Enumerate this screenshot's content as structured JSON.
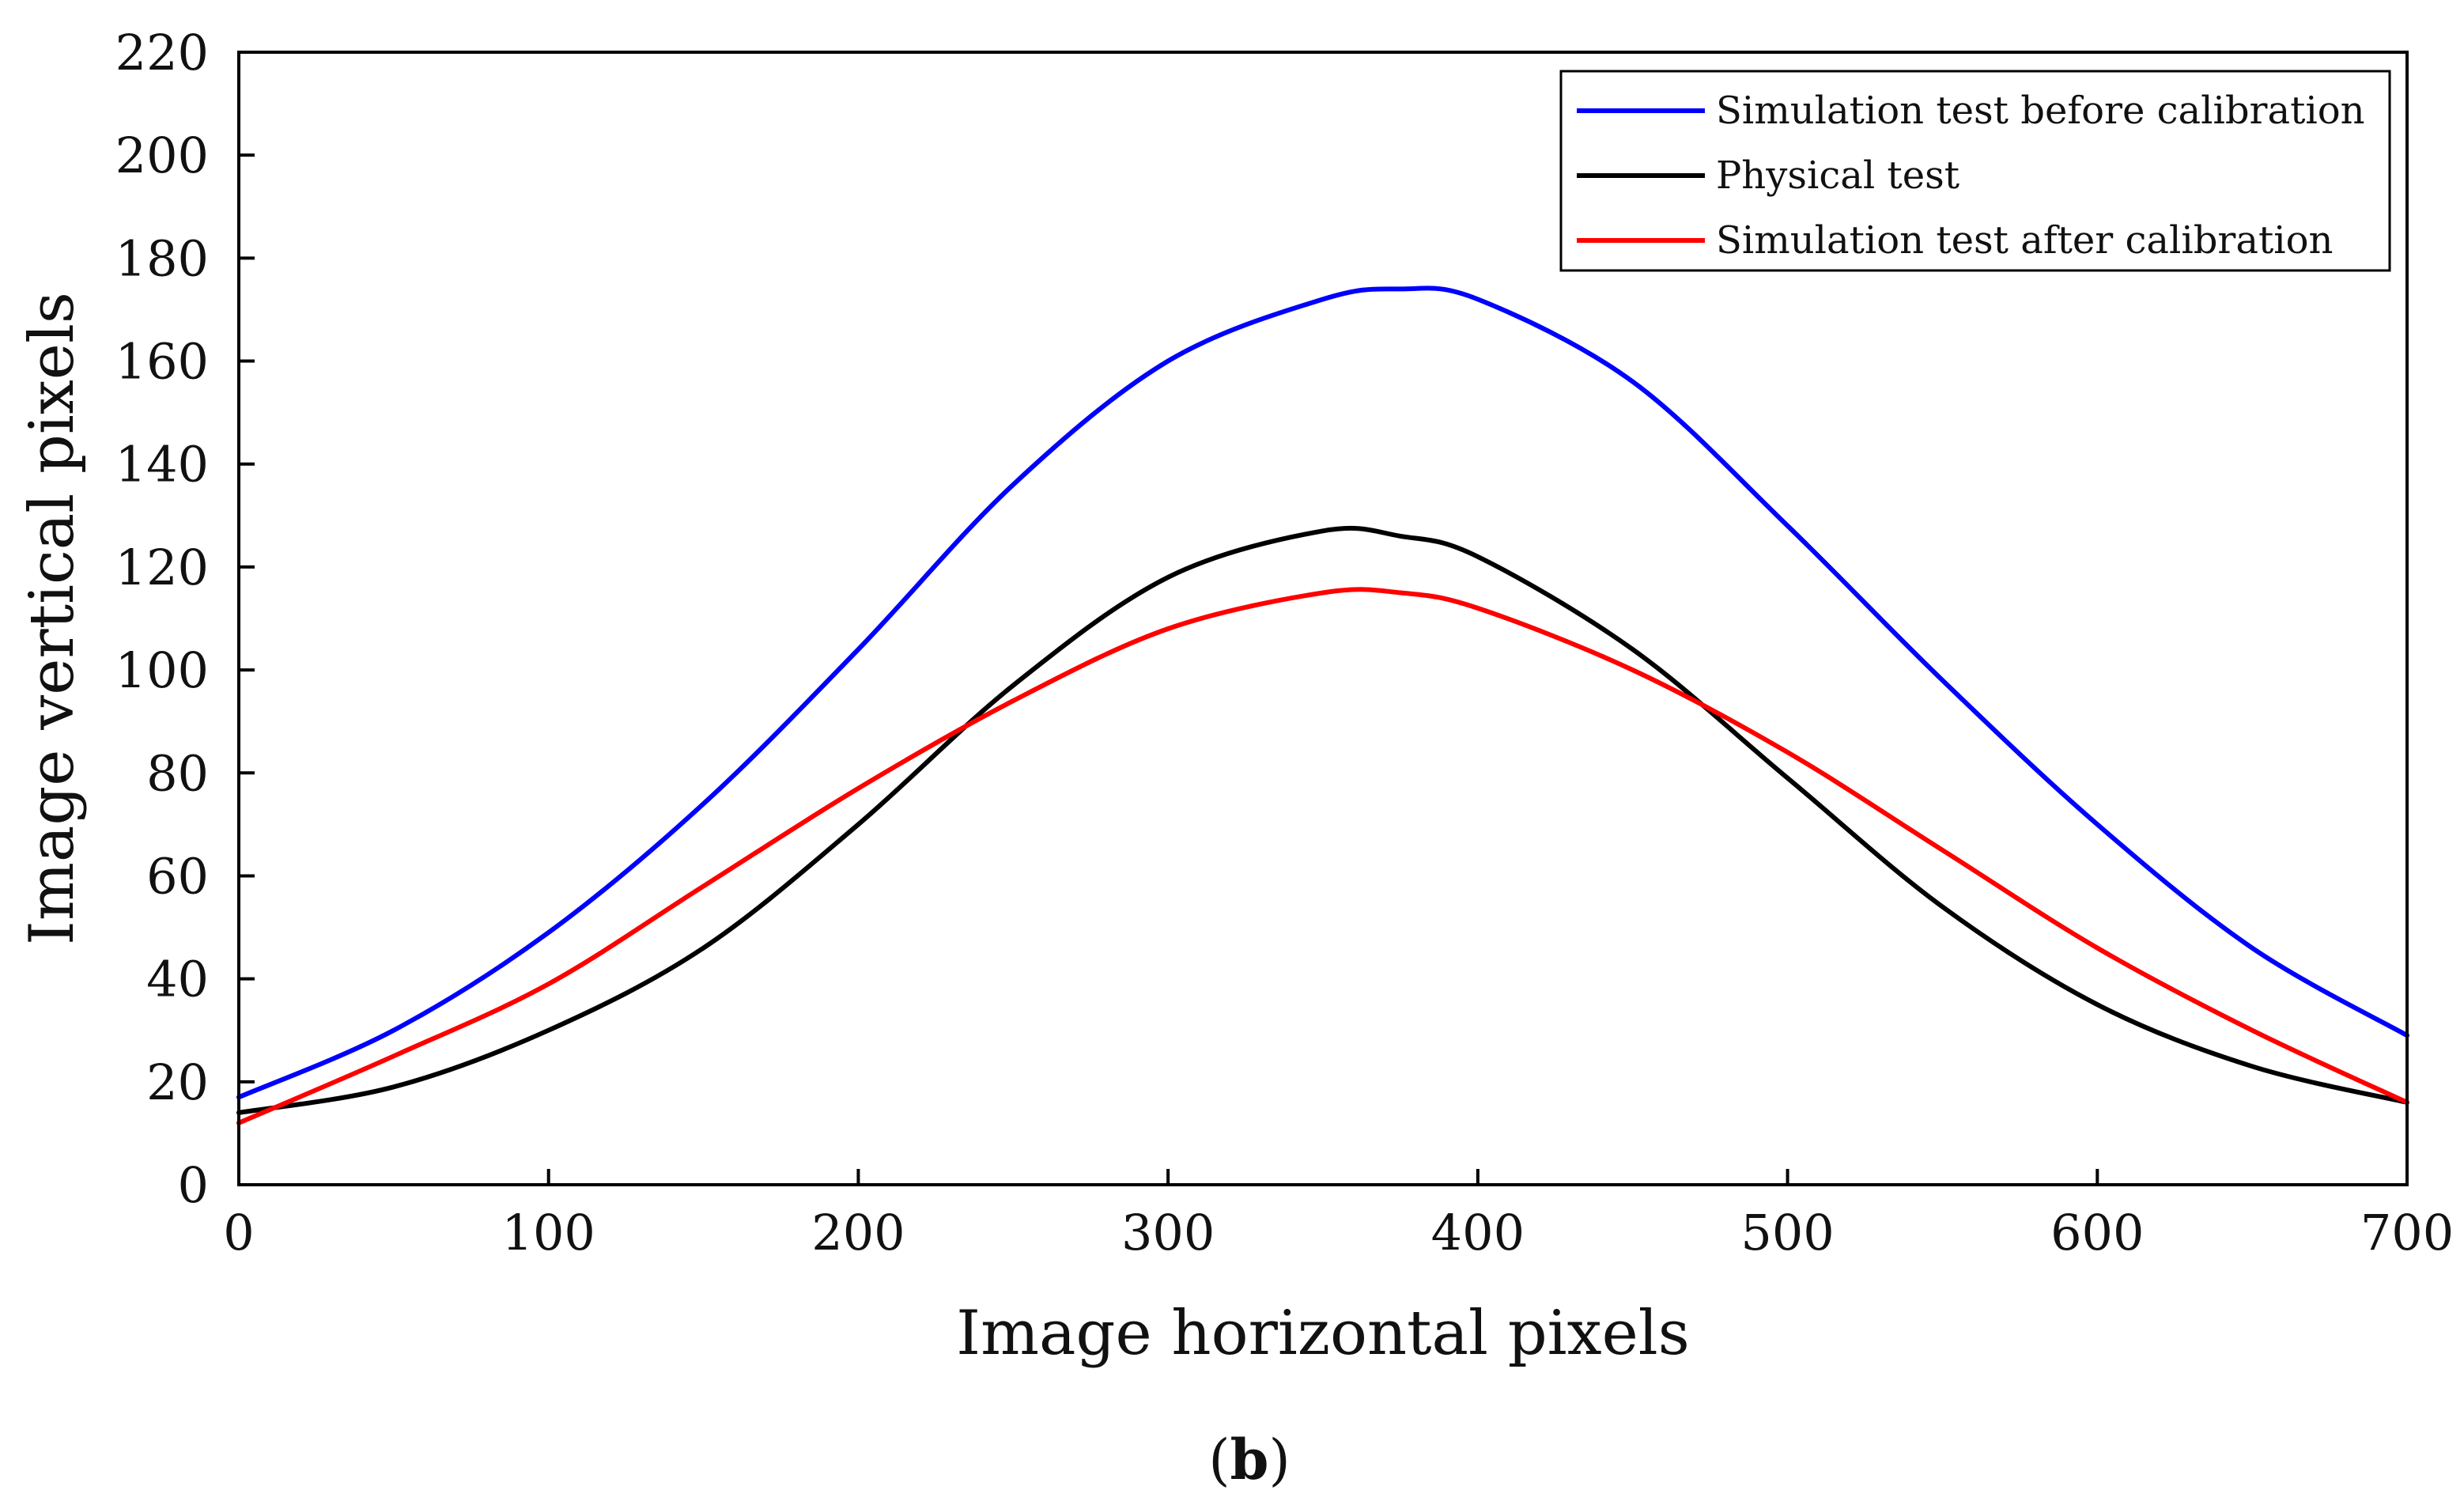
{
  "chart_data": {
    "type": "line",
    "title": "",
    "xlabel": "Image horizontal pixels",
    "ylabel": "Image vertical pixels",
    "xlim": [
      0,
      700
    ],
    "ylim": [
      0,
      220
    ],
    "xticks": [
      0,
      100,
      200,
      300,
      400,
      500,
      600,
      700
    ],
    "yticks": [
      0,
      20,
      40,
      60,
      80,
      100,
      120,
      140,
      160,
      180,
      200,
      220
    ],
    "grid": false,
    "legend_position": "top-right",
    "x": [
      0,
      50,
      100,
      150,
      200,
      250,
      300,
      350,
      375,
      400,
      450,
      500,
      550,
      600,
      650,
      700
    ],
    "series": [
      {
        "name": "Simulation test before calibration",
        "color": "#0000ff",
        "values": [
          17,
          30,
          49,
          74,
          104,
          136,
          160,
          172,
          174,
          172,
          156,
          128,
          98,
          70,
          46,
          29
        ]
      },
      {
        "name": "Physical test",
        "color": "#000000",
        "values": [
          14,
          19,
          30,
          46,
          70,
          97,
          118,
          127,
          126,
          122,
          104,
          79,
          54,
          35,
          23,
          16
        ]
      },
      {
        "name": "Simulation test after calibration",
        "color": "#ff0000",
        "values": [
          12,
          25,
          39,
          58,
          77,
          94,
          108,
          115,
          115,
          112,
          100,
          84,
          65,
          46,
          30,
          16
        ]
      }
    ]
  },
  "caption": {
    "open": "(",
    "letter": "b",
    "close": ")"
  }
}
